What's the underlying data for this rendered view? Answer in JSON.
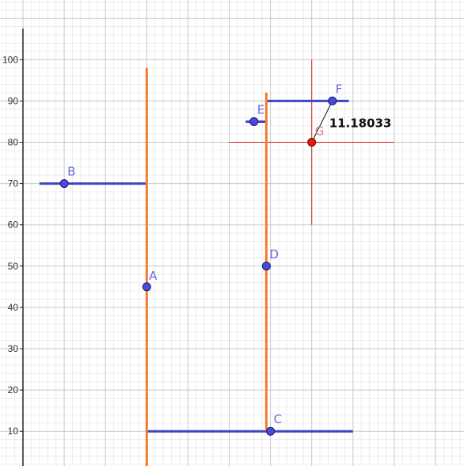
{
  "axis": {
    "y_range": [
      0,
      105
    ],
    "y_ticks": [
      10,
      20,
      30,
      40,
      50,
      60,
      70,
      80,
      90,
      100
    ],
    "x_range": [
      -5.6,
      105
    ]
  },
  "colors": {
    "vertical_lines": "#f47c2c",
    "horizontal_segments": "#3b47c2",
    "point_fill": "#4a4ade",
    "point_label": "#6b6bde",
    "special_point": "#e8190d",
    "guide_lines": "#d32020"
  },
  "vertical_lines": [
    {
      "name": "line-a",
      "x": 30,
      "y_from": 0,
      "y_to": 98
    },
    {
      "name": "line-d",
      "x": 59,
      "y_from": 10,
      "y_to": 92
    }
  ],
  "segments": [
    {
      "name": "segment-b",
      "x1": 4,
      "x2": 30,
      "y": 70
    },
    {
      "name": "segment-c",
      "x1": 30,
      "x2": 80,
      "y": 10
    },
    {
      "name": "segment-e",
      "x1": 54,
      "x2": 59,
      "y": 85
    },
    {
      "name": "segment-f",
      "x1": 59,
      "x2": 79,
      "y": 90
    }
  ],
  "points": [
    {
      "label": "A",
      "x": 30,
      "y": 45
    },
    {
      "label": "B",
      "x": 10,
      "y": 70
    },
    {
      "label": "C",
      "x": 60,
      "y": 10
    },
    {
      "label": "D",
      "x": 59,
      "y": 50
    },
    {
      "label": "E",
      "x": 56,
      "y": 85
    },
    {
      "label": "F",
      "x": 75,
      "y": 90
    }
  ],
  "point_g": {
    "label": "G",
    "x": 70,
    "y": 80
  },
  "guides": {
    "h_from": 50,
    "h_to": 90,
    "v_from": 60,
    "v_to": 100
  },
  "distance": {
    "label": "11.18033",
    "from": "G",
    "to": "F"
  }
}
